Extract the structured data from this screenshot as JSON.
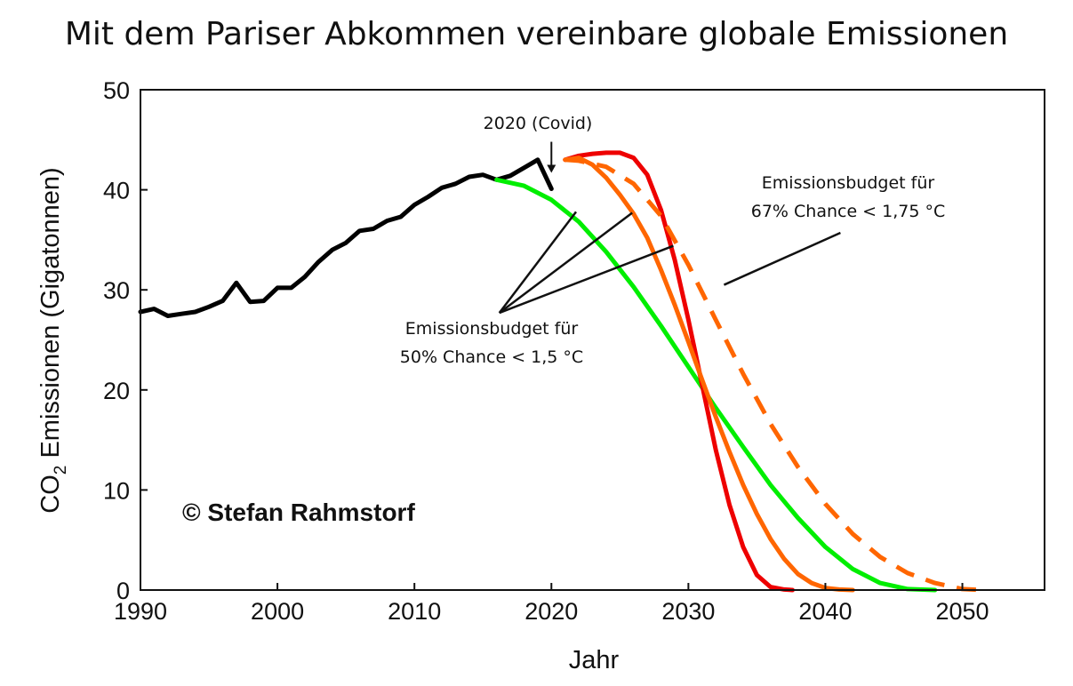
{
  "chart_data": {
    "type": "line",
    "title": "Mit dem Pariser Abkommen vereinbare globale Emissionen",
    "xlabel": "Jahr",
    "ylabel_main": "CO",
    "ylabel_sub": "2",
    "ylabel_rest": " Emissionen (Gigatonnen)",
    "xlim": [
      1990,
      2056
    ],
    "ylim": [
      0,
      50
    ],
    "xticks": [
      1990,
      2000,
      2010,
      2020,
      2030,
      2040,
      2050
    ],
    "yticks": [
      0,
      10,
      20,
      30,
      40,
      50
    ],
    "grid": false,
    "series": [
      {
        "color": "#000000",
        "dashed": false,
        "x": [
          1990,
          1991,
          1992,
          1993,
          1994,
          1995,
          1996,
          1997,
          1998,
          1999,
          2000,
          2001,
          2002,
          2003,
          2004,
          2005,
          2006,
          2007,
          2008,
          2009,
          2010,
          2011,
          2012,
          2013,
          2014,
          2015,
          2016,
          2017,
          2018,
          2019,
          2020
        ],
        "y": [
          27.8,
          28.1,
          27.4,
          27.6,
          27.8,
          28.3,
          28.9,
          30.7,
          28.8,
          28.9,
          30.2,
          30.2,
          31.3,
          32.8,
          34.0,
          34.7,
          35.9,
          36.1,
          36.9,
          37.3,
          38.5,
          39.3,
          40.2,
          40.6,
          41.3,
          41.5,
          41.0,
          41.4,
          42.2,
          43.0,
          40.1
        ]
      },
      {
        "color": "#00ee00",
        "dashed": false,
        "x": [
          2016,
          2018,
          2020,
          2022,
          2024,
          2026,
          2028,
          2030,
          2032,
          2034,
          2036,
          2038,
          2040,
          2042,
          2044,
          2046,
          2048
        ],
        "y": [
          41.0,
          40.4,
          39.0,
          36.8,
          33.8,
          30.3,
          26.4,
          22.3,
          18.2,
          14.3,
          10.5,
          7.2,
          4.3,
          2.1,
          0.7,
          0.1,
          0.0
        ]
      },
      {
        "color": "#ee0000",
        "dashed": false,
        "x": [
          2021,
          2022,
          2023,
          2024,
          2025,
          2026,
          2027,
          2028,
          2029,
          2030,
          2031,
          2032,
          2033,
          2034,
          2035,
          2036,
          2037,
          2037.6
        ],
        "y": [
          43.0,
          43.4,
          43.6,
          43.7,
          43.7,
          43.2,
          41.5,
          38.0,
          33.0,
          27.0,
          20.5,
          14.0,
          8.5,
          4.3,
          1.5,
          0.3,
          0.05,
          0.0
        ]
      },
      {
        "color": "#ff6600",
        "dashed": false,
        "x": [
          2021,
          2022,
          2023,
          2024,
          2025,
          2026,
          2027,
          2028,
          2029,
          2030,
          2031,
          2032,
          2033,
          2034,
          2035,
          2036,
          2037,
          2038,
          2039,
          2040,
          2041,
          2042
        ],
        "y": [
          43.0,
          43.2,
          42.5,
          41.2,
          39.5,
          37.6,
          35.2,
          32.0,
          28.5,
          24.8,
          21.0,
          17.3,
          13.8,
          10.5,
          7.6,
          5.1,
          3.1,
          1.6,
          0.7,
          0.2,
          0.05,
          0.0
        ]
      },
      {
        "color": "#ff6600",
        "dashed": true,
        "x": [
          2021,
          2022,
          2024,
          2026,
          2028,
          2030,
          2032,
          2034,
          2036,
          2038,
          2040,
          2042,
          2044,
          2046,
          2048,
          2050,
          2051.5
        ],
        "y": [
          43.0,
          42.9,
          42.3,
          40.6,
          37.4,
          32.5,
          27.0,
          21.6,
          16.6,
          12.3,
          8.6,
          5.6,
          3.3,
          1.7,
          0.7,
          0.1,
          0.0
        ]
      }
    ],
    "annotations": {
      "covid": "2020 (Covid)",
      "budget50_line1": "Emissionsbudget für",
      "budget50_line2": "50% Chance < 1,5 °C",
      "budget67_line1": "Emissionsbudget für",
      "budget67_line2": "67% Chance < 1,75 °C",
      "copyright": "© Stefan Rahmstorf"
    }
  }
}
